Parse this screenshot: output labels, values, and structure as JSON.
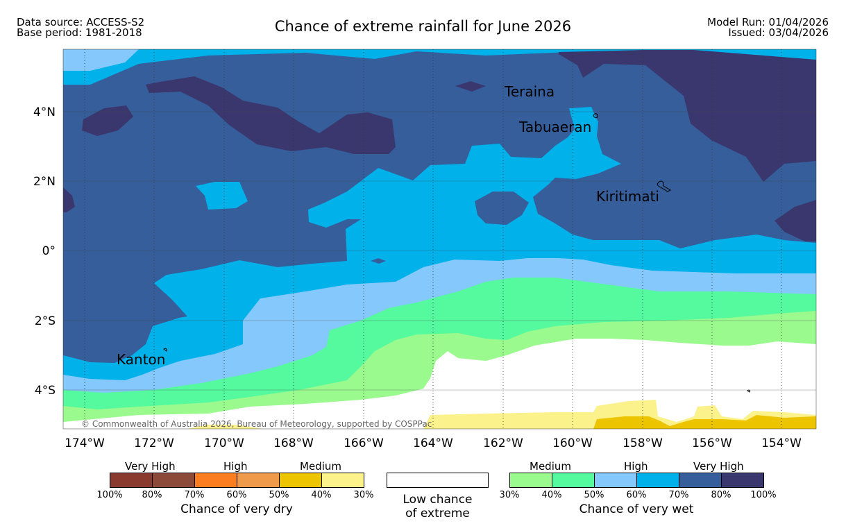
{
  "header": {
    "data_source": "Data source: ACCESS-S2",
    "base_period": "Base period: 1981-2018",
    "title": "Chance of extreme rainfall for June 2026",
    "model_run": "Model Run: 01/04/2026",
    "issued": "Issued: 03/04/2026"
  },
  "map": {
    "lat_labels": [
      "4°N",
      "2°N",
      "0°",
      "2°S",
      "4°S"
    ],
    "lon_labels": [
      "174°W",
      "172°W",
      "170°W",
      "168°W",
      "166°W",
      "164°W",
      "162°W",
      "160°W",
      "158°W",
      "156°W",
      "154°W"
    ],
    "places": [
      {
        "name": "Teraina"
      },
      {
        "name": "Tabuaeran"
      },
      {
        "name": "Kiritimati"
      },
      {
        "name": "Kanton"
      }
    ],
    "copyright": "© Commonwealth of Australia 2026, Bureau of Meteorology, supported by COSPPac"
  },
  "legend": {
    "dry": {
      "headers": [
        "Very High",
        "High",
        "Medium"
      ],
      "ticks": [
        "100%",
        "80%",
        "70%",
        "60%",
        "50%",
        "40%",
        "30%"
      ],
      "colors": [
        "#8b3a2f",
        "#8b4a3a",
        "#fb7d1f",
        "#ef9a4a",
        "#ecc500",
        "#fbf28c"
      ],
      "caption": "Chance of very dry"
    },
    "low": {
      "line1": "Low chance",
      "line2": "of extreme"
    },
    "wet": {
      "headers": [
        "Medium",
        "High",
        "Very High"
      ],
      "ticks": [
        "30%",
        "40%",
        "50%",
        "60%",
        "70%",
        "80%",
        "100%"
      ],
      "colors": [
        "#9afa8e",
        "#54fa9d",
        "#85c8fb",
        "#00b1ea",
        "#355e9b",
        "#3a376e"
      ],
      "caption": "Chance of very wet"
    }
  }
}
